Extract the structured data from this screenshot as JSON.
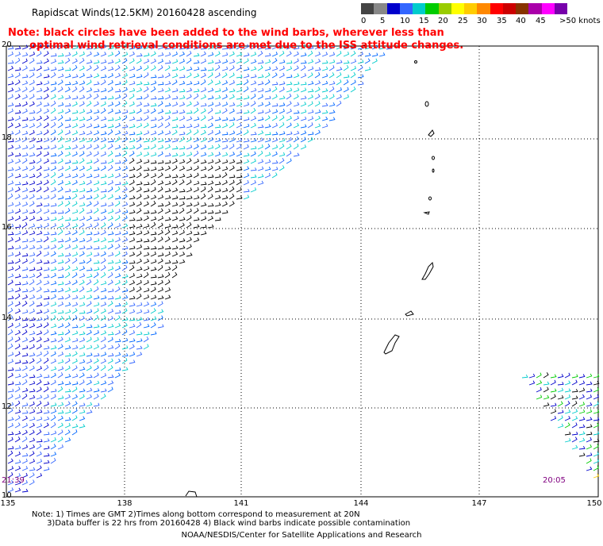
{
  "title": "Rapidscat Winds(12.5KM) 20160428 ascending",
  "note_line1": "Note: black circles have been added to the wind barbs, wherever less than",
  "note_line2": "      optimal wind retrieval conditions are met due to the ISS attitude changes.",
  "legend": {
    "colors": [
      "#444444",
      "#888888",
      "#0000cc",
      "#3366ff",
      "#00cccc",
      "#00cc00",
      "#99cc00",
      "#ffff00",
      "#ffcc00",
      "#ff8800",
      "#ff0000",
      "#cc0000",
      "#883300",
      "#aa00aa",
      "#ff00ff",
      "#7700aa"
    ],
    "labels": [
      "0",
      "5",
      "10",
      "15",
      "20",
      "25",
      "30",
      "35",
      "40",
      "45",
      ">50 knots"
    ]
  },
  "axes": {
    "x_labels": [
      "135",
      "138",
      "141",
      "144",
      "147",
      "150"
    ],
    "y_labels": [
      "20",
      "18",
      "16",
      "14",
      "12",
      "10"
    ]
  },
  "time_labels": {
    "left": "21:39",
    "right": "20:05"
  },
  "footnote_line1": "Note: 1) Times are GMT 2)Times along bottom correspond to measurement at 20N",
  "footnote_line2": "      3)Data buffer is 22 hrs from 20160428 4) Black wind barbs indicate possible contamination",
  "credit": "NOAA/NESDIS/Center for Satellite Applications and Research"
}
